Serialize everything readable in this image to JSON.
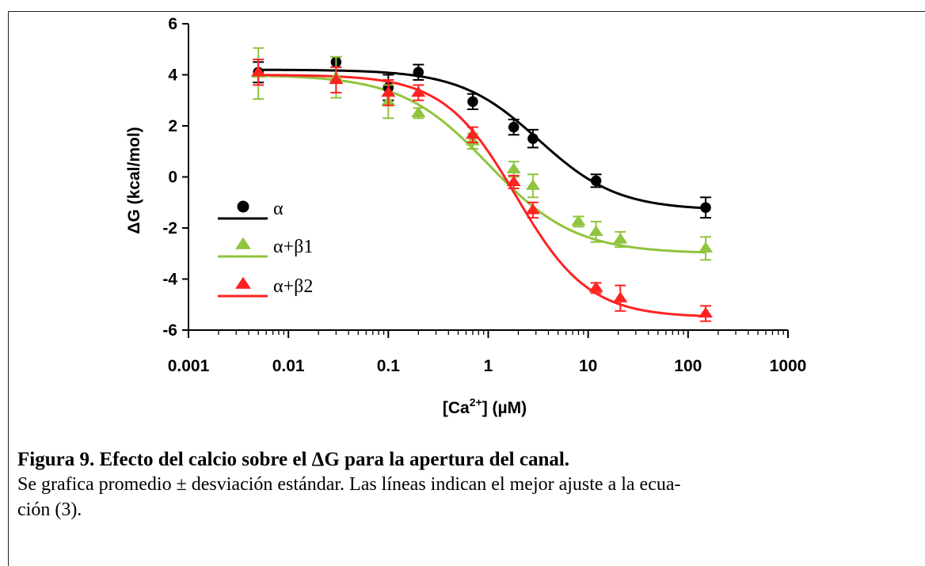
{
  "chart_data": {
    "type": "scatter",
    "x_scale": "log",
    "xlim": [
      0.001,
      1000
    ],
    "ylim": [
      -6,
      6
    ],
    "ylabel": "ΔG (kcal/mol)",
    "xlabel_parts": {
      "pre": "[Ca",
      "sup": "2+",
      "post": "] (µM)"
    },
    "x_ticks": [
      {
        "value": 0.001,
        "label": "0.001"
      },
      {
        "value": 0.01,
        "label": "0.01"
      },
      {
        "value": 0.1,
        "label": "0.1"
      },
      {
        "value": 1,
        "label": "1"
      },
      {
        "value": 10,
        "label": "10"
      },
      {
        "value": 100,
        "label": "100"
      },
      {
        "value": 1000,
        "label": "1000"
      }
    ],
    "y_ticks": [
      {
        "value": 6,
        "label": "6"
      },
      {
        "value": 4,
        "label": "4"
      },
      {
        "value": 2,
        "label": "2"
      },
      {
        "value": 0,
        "label": "0"
      },
      {
        "value": -2,
        "label": "-2"
      },
      {
        "value": -4,
        "label": "-4"
      },
      {
        "value": -6,
        "label": "-6"
      }
    ],
    "legend_placement": "left-center",
    "series": [
      {
        "name": "α",
        "color": "#000000",
        "marker": "circle",
        "fit": {
          "top": 4.2,
          "bottom": -1.3,
          "k": 3.2,
          "h": 1.1
        },
        "points": [
          {
            "x": 0.005,
            "y": 4.1,
            "err": 0.4
          },
          {
            "x": 0.03,
            "y": 4.5,
            "err": 0.2
          },
          {
            "x": 0.1,
            "y": 3.5,
            "err": 0.5
          },
          {
            "x": 0.2,
            "y": 4.1,
            "err": 0.3
          },
          {
            "x": 0.7,
            "y": 2.95,
            "err": 0.3
          },
          {
            "x": 1.8,
            "y": 1.95,
            "err": 0.3
          },
          {
            "x": 2.8,
            "y": 1.5,
            "err": 0.35
          },
          {
            "x": 12,
            "y": -0.15,
            "err": 0.25
          },
          {
            "x": 150,
            "y": -1.2,
            "err": 0.4
          }
        ]
      },
      {
        "name": "α+β1",
        "color": "#8fc43d",
        "marker": "triangle",
        "fit": {
          "top": 4.0,
          "bottom": -3.0,
          "k": 1.0,
          "h": 1.0
        },
        "points": [
          {
            "x": 0.005,
            "y": 4.05,
            "err": 1.0
          },
          {
            "x": 0.03,
            "y": 3.9,
            "err": 0.8
          },
          {
            "x": 0.1,
            "y": 2.95,
            "err": 0.65
          },
          {
            "x": 0.2,
            "y": 2.5,
            "err": 0.2
          },
          {
            "x": 0.7,
            "y": 1.4,
            "err": 0.3
          },
          {
            "x": 1.8,
            "y": 0.3,
            "err": 0.3
          },
          {
            "x": 2.8,
            "y": -0.35,
            "err": 0.45
          },
          {
            "x": 8,
            "y": -1.75,
            "err": 0.2
          },
          {
            "x": 12,
            "y": -2.15,
            "err": 0.4
          },
          {
            "x": 21,
            "y": -2.45,
            "err": 0.3
          },
          {
            "x": 150,
            "y": -2.8,
            "err": 0.45
          }
        ]
      },
      {
        "name": "α+β2",
        "color": "#ff2222",
        "marker": "triangle",
        "fit": {
          "top": 4.0,
          "bottom": -5.5,
          "k": 1.9,
          "h": 1.2
        },
        "points": [
          {
            "x": 0.005,
            "y": 4.1,
            "err": 0.5
          },
          {
            "x": 0.03,
            "y": 3.8,
            "err": 0.5
          },
          {
            "x": 0.1,
            "y": 3.3,
            "err": 0.5
          },
          {
            "x": 0.2,
            "y": 3.3,
            "err": 0.3
          },
          {
            "x": 0.7,
            "y": 1.65,
            "err": 0.3
          },
          {
            "x": 1.8,
            "y": -0.2,
            "err": 0.25
          },
          {
            "x": 2.8,
            "y": -1.3,
            "err": 0.3
          },
          {
            "x": 12,
            "y": -4.35,
            "err": 0.2
          },
          {
            "x": 21,
            "y": -4.75,
            "err": 0.5
          },
          {
            "x": 150,
            "y": -5.35,
            "err": 0.3
          }
        ]
      }
    ]
  },
  "caption": {
    "title": "Figura 9. Efecto del calcio sobre el ΔG para la apertura del canal.",
    "line1": "Se grafica promedio ± desviación estándar. Las líneas indican el mejor ajuste a la ecua-",
    "line2": "ción (3)."
  }
}
